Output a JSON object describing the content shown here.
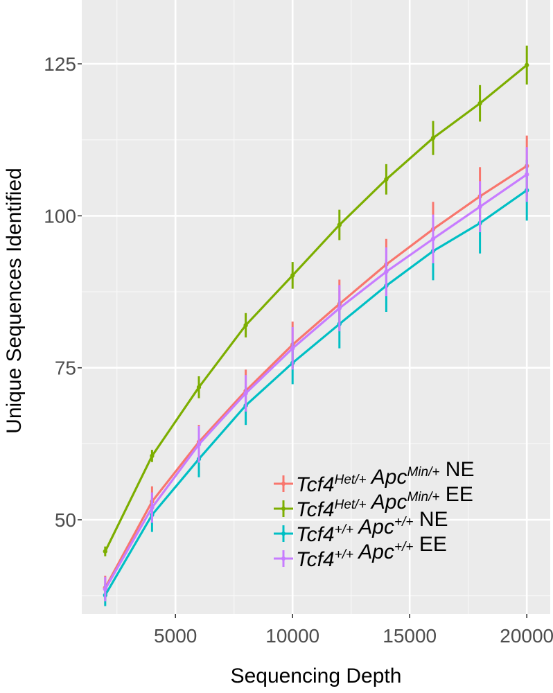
{
  "chart_data": {
    "type": "line",
    "title": "",
    "xlabel": "Sequencing Depth",
    "ylabel": "Unique Sequences Identified",
    "xlim": [
      1000,
      21000
    ],
    "ylim": [
      34.5,
      135.5
    ],
    "x_ticks": [
      5000,
      10000,
      15000,
      20000
    ],
    "x_tick_labels": [
      "5000",
      "10000",
      "15000",
      "20000"
    ],
    "y_ticks": [
      50,
      75,
      100,
      125
    ],
    "y_tick_labels": [
      "50",
      "75",
      "100",
      "125"
    ],
    "grid": true,
    "legend_position": "bottom-right",
    "x": [
      2000,
      4000,
      6000,
      8000,
      10000,
      12000,
      14000,
      16000,
      18000,
      20000
    ],
    "series": [
      {
        "name": "Tcf4Het/+ ApcMin/+ NE",
        "label_parts": [
          [
            "Tcf4",
            ""
          ],
          [
            "Het/+",
            "sup"
          ],
          [
            " Apc",
            ""
          ],
          [
            "Min/+",
            "sup"
          ],
          [
            " NE",
            ""
          ]
        ],
        "color": "#F8766D",
        "values": [
          38.8,
          53.0,
          62.8,
          71.2,
          78.8,
          85.5,
          92.0,
          97.8,
          103.2,
          108.2
        ],
        "errors": [
          2.0,
          2.5,
          2.8,
          3.5,
          3.8,
          4.0,
          4.2,
          4.5,
          4.8,
          5.0
        ]
      },
      {
        "name": "Tcf4Het/+ ApcMin/+ EE",
        "label_parts": [
          [
            "Tcf4",
            ""
          ],
          [
            "Het/+",
            "sup"
          ],
          [
            " Apc",
            ""
          ],
          [
            "Min/+",
            "sup"
          ],
          [
            " EE",
            ""
          ]
        ],
        "color": "#7CAE00",
        "values": [
          44.8,
          60.5,
          71.8,
          82.0,
          90.2,
          98.5,
          106.0,
          112.8,
          118.5,
          124.8
        ],
        "errors": [
          0.8,
          1.0,
          1.8,
          2.0,
          2.2,
          2.5,
          2.5,
          2.8,
          3.0,
          3.2
        ]
      },
      {
        "name": "Tcf4+/+ Apc+/+ NE",
        "label_parts": [
          [
            "Tcf4",
            ""
          ],
          [
            "+/+",
            "sup"
          ],
          [
            " Apc",
            ""
          ],
          [
            "+/+",
            "sup"
          ],
          [
            " NE",
            ""
          ]
        ],
        "color": "#00BFC4",
        "values": [
          37.6,
          50.8,
          60.0,
          68.8,
          75.8,
          82.2,
          88.5,
          94.2,
          98.8,
          104.2
        ],
        "errors": [
          1.8,
          2.8,
          3.0,
          3.2,
          3.5,
          4.0,
          4.3,
          4.8,
          5.0,
          5.0
        ]
      },
      {
        "name": "Tcf4+/+ Apc+/+ EE",
        "label_parts": [
          [
            "Tcf4",
            ""
          ],
          [
            "+/+",
            "sup"
          ],
          [
            " Apc",
            ""
          ],
          [
            "+/+",
            "sup"
          ],
          [
            " EE",
            ""
          ]
        ],
        "color": "#C77CFF",
        "values": [
          38.6,
          52.0,
          62.4,
          70.8,
          78.2,
          84.8,
          90.8,
          96.2,
          101.5,
          106.8
        ],
        "errors": [
          2.0,
          2.5,
          3.0,
          3.0,
          3.5,
          3.8,
          4.0,
          4.0,
          4.2,
          4.5
        ]
      }
    ]
  }
}
